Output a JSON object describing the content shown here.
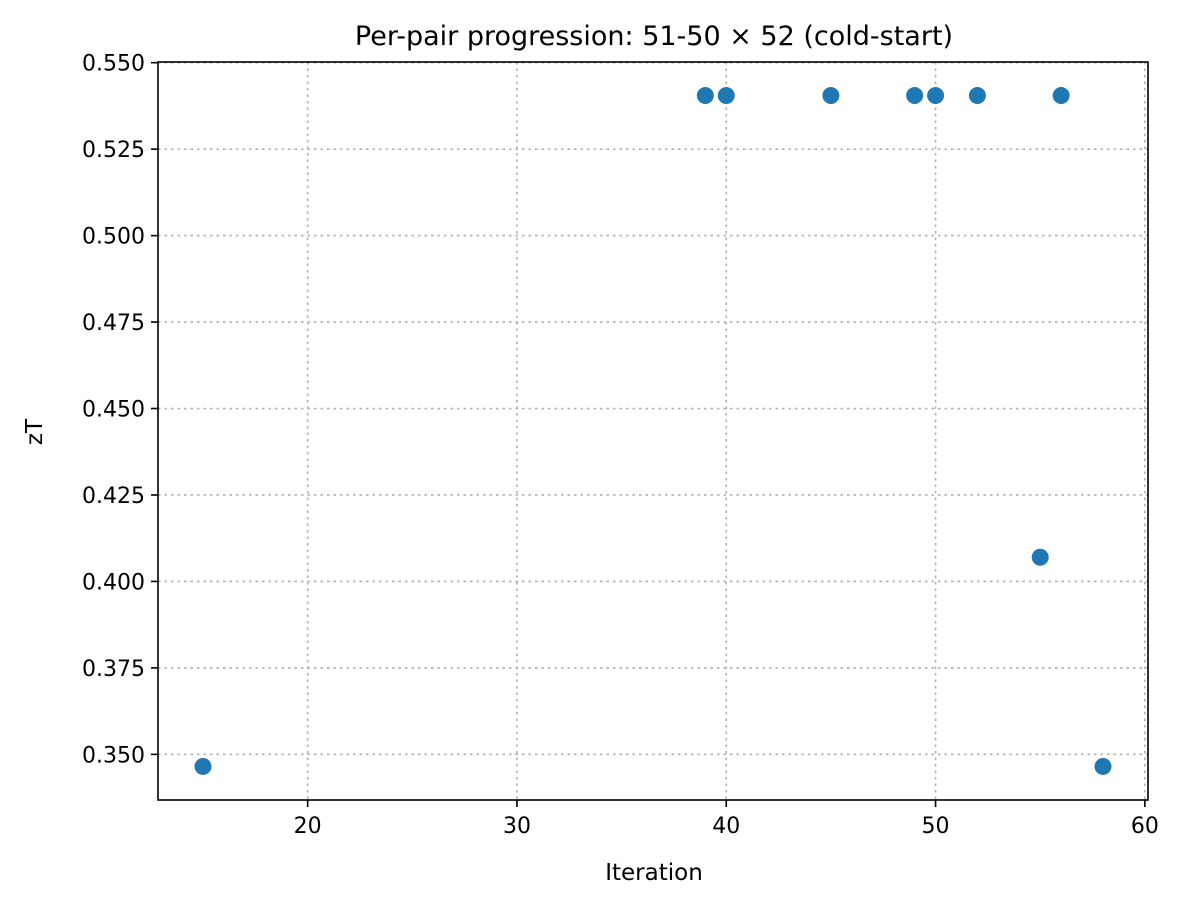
{
  "chart_data": {
    "type": "scatter",
    "title": "Per-pair progression: 51-50 × 52 (cold-start)",
    "xlabel": "Iteration",
    "ylabel": "zT",
    "xlim": [
      12.85,
      60.15
    ],
    "ylim": [
      0.3368,
      0.5502
    ],
    "xticks": [
      20,
      30,
      40,
      50,
      60
    ],
    "xtick_labels": [
      "20",
      "30",
      "40",
      "50",
      "60"
    ],
    "yticks": [
      0.35,
      0.375,
      0.4,
      0.425,
      0.45,
      0.475,
      0.5,
      0.525,
      0.55
    ],
    "ytick_labels": [
      "0.350",
      "0.375",
      "0.400",
      "0.425",
      "0.450",
      "0.475",
      "0.500",
      "0.525",
      "0.550"
    ],
    "grid": true,
    "grid_style": "dotted",
    "color": "#1f77b4",
    "points": [
      {
        "x": 15,
        "y": 0.3465
      },
      {
        "x": 39,
        "y": 0.5405
      },
      {
        "x": 40,
        "y": 0.5405
      },
      {
        "x": 45,
        "y": 0.5405
      },
      {
        "x": 49,
        "y": 0.5405
      },
      {
        "x": 50,
        "y": 0.5405
      },
      {
        "x": 52,
        "y": 0.5405
      },
      {
        "x": 55,
        "y": 0.407
      },
      {
        "x": 56,
        "y": 0.5405
      },
      {
        "x": 58,
        "y": 0.3465
      }
    ]
  }
}
